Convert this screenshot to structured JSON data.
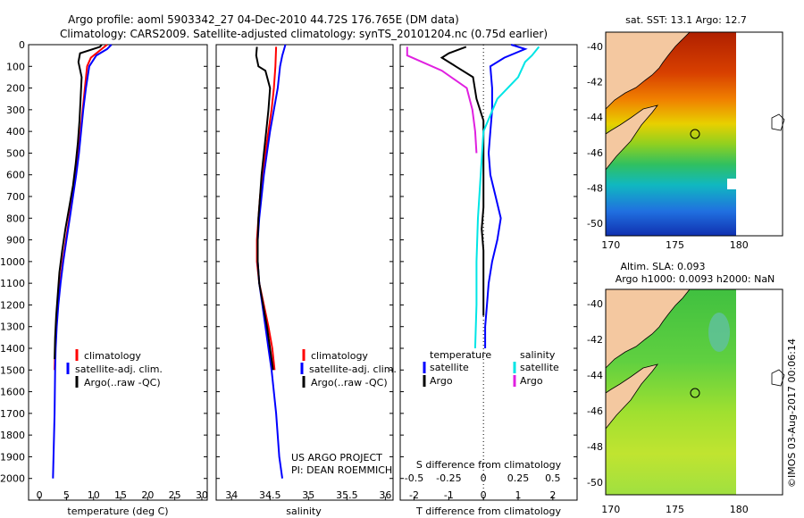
{
  "header": {
    "title_line1": "Argo profile: aoml 5903342_27 04-Dec-2010 44.72S 176.765E (DM data)",
    "title_line2": "Climatology: CARS2009. Satellite-adjusted climatology: synTS_20101204.nc (0.75d earlier)"
  },
  "colors": {
    "climatology": "#ff0000",
    "satellite": "#0000ff",
    "argo": "#000000",
    "sat_salinity": "#00e5e5",
    "argo_salinity": "#e020e0"
  },
  "chart_data": [
    {
      "type": "line",
      "name": "temperature-profile",
      "xlabel": "temperature (deg C)",
      "ylabel": "depth",
      "xlim": [
        -2,
        31
      ],
      "ylim": [
        0,
        2100
      ],
      "xticks": [
        0,
        5,
        10,
        15,
        20,
        25,
        30
      ],
      "yticks": [
        0,
        100,
        200,
        300,
        400,
        500,
        600,
        700,
        800,
        900,
        1000,
        1100,
        1200,
        1300,
        1400,
        1500,
        1600,
        1700,
        1800,
        1900,
        2000
      ],
      "legend": [
        "climatology",
        "satellite-adj. clim.",
        "Argo(..raw -QC)"
      ],
      "series": [
        {
          "name": "climatology",
          "color_key": "climatology",
          "points": [
            [
              12.5,
              0
            ],
            [
              11.5,
              20
            ],
            [
              9.5,
              60
            ],
            [
              8.8,
              100
            ],
            [
              8.4,
              200
            ],
            [
              8.0,
              300
            ],
            [
              7.6,
              400
            ],
            [
              7.2,
              500
            ],
            [
              6.6,
              600
            ],
            [
              6.1,
              700
            ],
            [
              5.5,
              800
            ],
            [
              4.9,
              900
            ],
            [
              4.3,
              1000
            ],
            [
              3.8,
              1100
            ],
            [
              3.4,
              1200
            ],
            [
              3.1,
              1300
            ],
            [
              2.9,
              1400
            ],
            [
              2.8,
              1500
            ]
          ]
        },
        {
          "name": "satellite",
          "color_key": "satellite",
          "points": [
            [
              13.3,
              0
            ],
            [
              12.5,
              20
            ],
            [
              10.5,
              50
            ],
            [
              9.2,
              100
            ],
            [
              8.6,
              200
            ],
            [
              8.1,
              300
            ],
            [
              7.7,
              400
            ],
            [
              7.3,
              500
            ],
            [
              6.8,
              600
            ],
            [
              6.2,
              700
            ],
            [
              5.6,
              800
            ],
            [
              5.0,
              900
            ],
            [
              4.4,
              1000
            ],
            [
              3.9,
              1100
            ],
            [
              3.5,
              1200
            ],
            [
              3.2,
              1300
            ],
            [
              3.0,
              1400
            ],
            [
              2.9,
              1500
            ],
            [
              2.8,
              1700
            ],
            [
              2.6,
              1900
            ],
            [
              2.5,
              2000
            ]
          ]
        },
        {
          "name": "argo",
          "color_key": "argo",
          "points": [
            [
              11.5,
              0
            ],
            [
              11.2,
              10
            ],
            [
              7.5,
              40
            ],
            [
              7.2,
              80
            ],
            [
              7.8,
              150
            ],
            [
              7.6,
              250
            ],
            [
              7.4,
              350
            ],
            [
              7.1,
              450
            ],
            [
              6.7,
              550
            ],
            [
              6.2,
              650
            ],
            [
              5.5,
              750
            ],
            [
              4.8,
              850
            ],
            [
              4.2,
              950
            ],
            [
              3.7,
              1050
            ],
            [
              3.4,
              1150
            ],
            [
              3.1,
              1250
            ],
            [
              2.9,
              1350
            ],
            [
              2.8,
              1450
            ]
          ]
        }
      ]
    },
    {
      "type": "line",
      "name": "salinity-profile",
      "xlabel": "salinity",
      "xlim": [
        33.8,
        36.1
      ],
      "ylim": [
        0,
        2100
      ],
      "xticks": [
        34,
        34.5,
        35,
        35.5,
        36
      ],
      "legend": [
        "climatology",
        "satellite-adj. clim.",
        "Argo(..raw -QC)"
      ],
      "annotation": [
        "US ARGO PROJECT",
        "PI: DEAN ROEMMICH"
      ],
      "series": [
        {
          "name": "climatology",
          "color_key": "climatology",
          "points": [
            [
              34.58,
              10
            ],
            [
              34.57,
              100
            ],
            [
              34.55,
              200
            ],
            [
              34.52,
              300
            ],
            [
              34.48,
              400
            ],
            [
              34.44,
              500
            ],
            [
              34.4,
              600
            ],
            [
              34.37,
              700
            ],
            [
              34.35,
              800
            ],
            [
              34.33,
              900
            ],
            [
              34.33,
              1000
            ],
            [
              34.36,
              1100
            ],
            [
              34.42,
              1200
            ],
            [
              34.48,
              1300
            ],
            [
              34.53,
              1400
            ],
            [
              34.56,
              1500
            ]
          ]
        },
        {
          "name": "satellite",
          "color_key": "satellite",
          "points": [
            [
              34.7,
              0
            ],
            [
              34.66,
              50
            ],
            [
              34.63,
              100
            ],
            [
              34.6,
              200
            ],
            [
              34.55,
              300
            ],
            [
              34.5,
              400
            ],
            [
              34.46,
              500
            ],
            [
              34.42,
              600
            ],
            [
              34.39,
              700
            ],
            [
              34.36,
              800
            ],
            [
              34.34,
              900
            ],
            [
              34.34,
              1000
            ],
            [
              34.36,
              1100
            ],
            [
              34.4,
              1200
            ],
            [
              34.44,
              1300
            ],
            [
              34.48,
              1400
            ],
            [
              34.52,
              1500
            ],
            [
              34.58,
              1700
            ],
            [
              34.62,
              1900
            ],
            [
              34.66,
              2000
            ]
          ]
        },
        {
          "name": "argo",
          "color_key": "argo",
          "points": [
            [
              34.33,
              10
            ],
            [
              34.32,
              50
            ],
            [
              34.35,
              100
            ],
            [
              34.44,
              120
            ],
            [
              34.5,
              200
            ],
            [
              34.48,
              300
            ],
            [
              34.45,
              400
            ],
            [
              34.42,
              500
            ],
            [
              34.39,
              600
            ],
            [
              34.37,
              700
            ],
            [
              34.35,
              800
            ],
            [
              34.34,
              900
            ],
            [
              34.34,
              1000
            ],
            [
              34.36,
              1100
            ],
            [
              34.41,
              1200
            ],
            [
              34.46,
              1300
            ],
            [
              34.5,
              1400
            ],
            [
              34.54,
              1500
            ]
          ]
        }
      ]
    },
    {
      "type": "line",
      "name": "difference-profile",
      "xlabel": "T difference from climatology",
      "xlabel2": "S difference from climatology",
      "xlim": [
        -2.4,
        2.7
      ],
      "ylim": [
        0,
        2100
      ],
      "xticks": [
        -2,
        -1,
        0,
        1,
        2
      ],
      "x2ticks": [
        -0.5,
        -0.25,
        0,
        0.25,
        0.5
      ],
      "legend_groups": {
        "temperature": [
          "satellite",
          "Argo"
        ],
        "salinity": [
          "satellite",
          "Argo"
        ]
      },
      "series": [
        {
          "name": "T satellite",
          "color_key": "satellite",
          "points": [
            [
              0.8,
              0
            ],
            [
              1.2,
              20
            ],
            [
              0.6,
              60
            ],
            [
              0.2,
              100
            ],
            [
              0.25,
              200
            ],
            [
              0.25,
              300
            ],
            [
              0.2,
              400
            ],
            [
              0.15,
              500
            ],
            [
              0.2,
              600
            ],
            [
              0.35,
              700
            ],
            [
              0.5,
              800
            ],
            [
              0.4,
              900
            ],
            [
              0.25,
              1000
            ],
            [
              0.15,
              1100
            ],
            [
              0.1,
              1200
            ],
            [
              0.05,
              1300
            ],
            [
              0.05,
              1400
            ]
          ]
        },
        {
          "name": "T argo",
          "color_key": "argo",
          "points": [
            [
              -0.5,
              10
            ],
            [
              -1.0,
              40
            ],
            [
              -1.2,
              60
            ],
            [
              -0.8,
              100
            ],
            [
              -0.3,
              150
            ],
            [
              -0.2,
              250
            ],
            [
              0,
              350
            ],
            [
              0,
              450
            ],
            [
              0,
              550
            ],
            [
              0,
              650
            ],
            [
              0,
              750
            ],
            [
              -0.05,
              850
            ],
            [
              0,
              950
            ],
            [
              0,
              1050
            ],
            [
              0,
              1150
            ],
            [
              0,
              1250
            ]
          ]
        },
        {
          "name": "S satellite",
          "color_key": "sat_salinity",
          "points": [
            [
              0.4,
              10
            ],
            [
              0.35,
              50
            ],
            [
              0.3,
              80
            ],
            [
              0.25,
              150
            ],
            [
              0.1,
              250
            ],
            [
              0.0,
              400
            ],
            [
              -0.02,
              600
            ],
            [
              -0.04,
              800
            ],
            [
              -0.05,
              1000
            ],
            [
              -0.05,
              1200
            ],
            [
              -0.06,
              1400
            ]
          ]
        },
        {
          "name": "S argo",
          "color_key": "argo_salinity",
          "points": [
            [
              -0.55,
              10
            ],
            [
              -0.55,
              50
            ],
            [
              -0.3,
              120
            ],
            [
              -0.12,
              200
            ],
            [
              -0.08,
              300
            ],
            [
              -0.06,
              400
            ],
            [
              -0.05,
              500
            ]
          ]
        }
      ]
    },
    {
      "type": "heatmap",
      "name": "sst-map",
      "title": "sat. SST: 13.1 Argo: 12.7",
      "xticks": [
        170,
        175,
        180
      ],
      "yticks": [
        -40,
        -42,
        -44,
        -46,
        -48,
        -50
      ],
      "marker": {
        "lon": 176.765,
        "lat": -44.72
      }
    },
    {
      "type": "heatmap",
      "name": "sla-map",
      "title_line1": "Altim. SLA: 0.093",
      "title_line2": "Argo h1000: 0.0093 h2000: NaN",
      "xticks": [
        170,
        175,
        180
      ],
      "yticks": [
        -40,
        -42,
        -44,
        -46,
        -48,
        -50
      ],
      "marker": {
        "lon": 176.765,
        "lat": -44.72
      }
    }
  ],
  "legends": {
    "temperature_labels": [
      "climatology",
      "satellite-adj. clim.",
      "Argo(..raw -QC)"
    ],
    "salinity_labels": [
      "climatology",
      "satellite-adj. clim.",
      "Argo(..raw -QC)"
    ],
    "diff_temperature_title": "temperature",
    "diff_salinity_title": "salinity",
    "diff_temperature_items": [
      "satellite",
      "Argo"
    ],
    "diff_salinity_items": [
      "satellite",
      "Argo"
    ]
  },
  "credit": "©IMOS 03-Aug-2017 00:06:14"
}
